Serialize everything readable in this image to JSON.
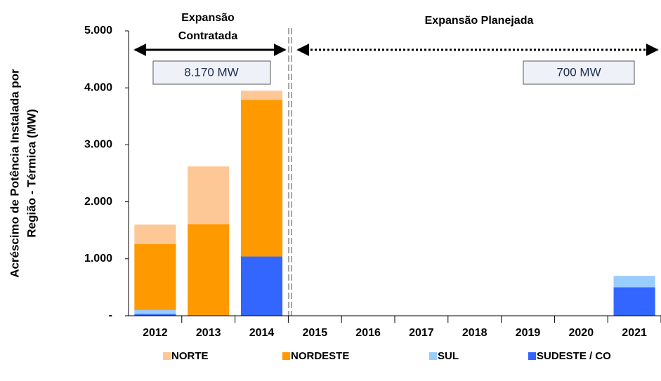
{
  "chart_data": {
    "type": "stacked_bar",
    "y_label": [
      "Acréscimo de Potência Instalada por",
      "Região - Térmica (MW)"
    ],
    "annotations": {
      "contracted": [
        "Expansão",
        "Contratada"
      ],
      "planned": "Expansão Planejada",
      "contracted_total": "8.170 MW",
      "planned_total": "700 MW"
    },
    "categories": [
      "2012",
      "2013",
      "2014",
      "2015",
      "2016",
      "2017",
      "2018",
      "2019",
      "2020",
      "2021"
    ],
    "series": [
      {
        "name": "NORTE",
        "color": "#fdc896",
        "values": [
          340,
          1010,
          160,
          0,
          0,
          0,
          0,
          0,
          0,
          0
        ]
      },
      {
        "name": "NORDESTE",
        "color": "#ff9900",
        "values": [
          1160,
          1610,
          2750,
          0,
          0,
          0,
          0,
          0,
          0,
          0
        ]
      },
      {
        "name": "SUL",
        "color": "#99ccff",
        "values": [
          70,
          0,
          0,
          0,
          0,
          0,
          0,
          0,
          0,
          200
        ]
      },
      {
        "name": "SUDESTE / CO",
        "color": "#3366ff",
        "values": [
          30,
          0,
          1040,
          0,
          0,
          0,
          0,
          0,
          0,
          500
        ]
      }
    ],
    "ylim": [
      0,
      5000
    ],
    "yticks": [
      {
        "value": 0,
        "label": "-"
      },
      {
        "value": 1000,
        "label": "1.000"
      },
      {
        "value": 2000,
        "label": "2.000"
      },
      {
        "value": 3000,
        "label": "3.000"
      },
      {
        "value": 4000,
        "label": "4.000"
      },
      {
        "value": 5000,
        "label": "5.000"
      }
    ],
    "grid": false,
    "legend": "bottom"
  }
}
